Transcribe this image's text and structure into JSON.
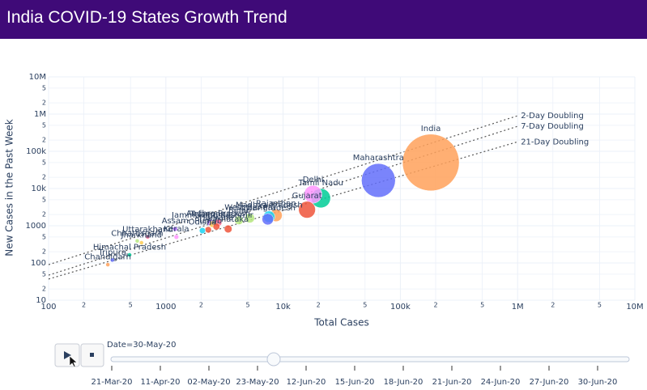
{
  "chart_data": {
    "type": "scatter",
    "title": "India COVID-19 States Growth Trend",
    "xlabel": "Total Cases",
    "ylabel": "New Cases in the Past Week",
    "log_x": true,
    "log_y": true,
    "grid": true,
    "xlim": [
      100,
      10000000
    ],
    "ylim": [
      10,
      10000000
    ],
    "xticks": [
      100,
      {
        "value": 200,
        "label": "2"
      },
      {
        "value": 500,
        "label": "5"
      },
      1000,
      {
        "value": 2000,
        "label": "2"
      },
      {
        "value": 5000,
        "label": "5"
      },
      {
        "value": 10000,
        "label": "10k"
      },
      {
        "value": 20000,
        "label": "2"
      },
      {
        "value": 50000,
        "label": "5"
      },
      {
        "value": 100000,
        "label": "100k"
      },
      {
        "value": 200000,
        "label": "2"
      },
      {
        "value": 500000,
        "label": "5"
      },
      {
        "value": 1000000,
        "label": "1M"
      },
      {
        "value": 2000000,
        "label": "2"
      },
      {
        "value": 5000000,
        "label": "5"
      },
      {
        "value": 10000000,
        "label": "10M"
      }
    ],
    "yticks": [
      10,
      {
        "value": 20,
        "label": "2"
      },
      {
        "value": 50,
        "label": "5"
      },
      100,
      {
        "value": 200,
        "label": "2"
      },
      {
        "value": 500,
        "label": "5"
      },
      1000,
      {
        "value": 2000,
        "label": "2"
      },
      {
        "value": 5000,
        "label": "5"
      },
      {
        "value": 10000,
        "label": "10k"
      },
      {
        "value": 20000,
        "label": "2"
      },
      {
        "value": 50000,
        "label": "5"
      },
      {
        "value": 100000,
        "label": "100k"
      },
      {
        "value": 200000,
        "label": "2"
      },
      {
        "value": 500000,
        "label": "5"
      },
      {
        "value": 1000000,
        "label": "1M"
      },
      {
        "value": 2000000,
        "label": "2"
      },
      {
        "value": 5000000,
        "label": "5"
      },
      {
        "value": 10000000,
        "label": "10M"
      }
    ],
    "labels": [
      "India",
      "Maharashtra",
      "Tamil Nadu",
      "Delhi",
      "Gujarat",
      "Rajasthan",
      "Madhya Pradesh",
      "Uttar Pradesh",
      "West Bengal",
      "Bihar",
      "Karnataka",
      "Andhra Pradesh",
      "Telangana",
      "Jammu and Kashmir",
      "Haryana",
      "Punjab",
      "Odisha",
      "Assam",
      "Kerala",
      "Uttarakhand",
      "Jharkhand",
      "Chhattisgarh",
      "Himachal Pradesh",
      "Tripura",
      "Chandigarh"
    ],
    "x": [
      182000,
      65000,
      21000,
      18000,
      16000,
      8700,
      7600,
      7400,
      5200,
      4200,
      3400,
      2800,
      2400,
      2500,
      2700,
      2300,
      2050,
      1200,
      1230,
      700,
      620,
      570,
      490,
      350,
      320
    ],
    "values": [
      50000,
      16500,
      5500,
      7000,
      2700,
      1900,
      1750,
      1500,
      1600,
      1400,
      820,
      1200,
      1200,
      1100,
      950,
      780,
      740,
      820,
      500,
      500,
      350,
      390,
      165,
      120,
      90
    ],
    "colors": [
      "#ffa15a",
      "#636efa",
      "#00cc96",
      "#ff97ff",
      "#ef553b",
      "#ffa15a",
      "#19d3f3",
      "#636efa",
      "#b6e880",
      "#b6e880",
      "#ef553b",
      "#ff6692",
      "#ab63fa",
      "#fecb52",
      "#ef553b",
      "#ef553b",
      "#19d3f3",
      "#ab63fa",
      "#ff97ff",
      "#ff6692",
      "#fecb52",
      "#b6e880",
      "#00cc96",
      "#636efa",
      "#ffa15a"
    ],
    "reference_lines": [
      {
        "name": "2-Day Doubling",
        "x": [
          100,
          1000000
        ],
        "y": [
          90,
          900000
        ]
      },
      {
        "name": "7-Day Doubling",
        "x": [
          100,
          1000000
        ],
        "y": [
          47,
          470000
        ]
      },
      {
        "name": "21-Day Doubling",
        "x": [
          100,
          1000000
        ],
        "y": [
          37,
          180000
        ]
      }
    ],
    "slider": {
      "current": "Date=30-May-20",
      "steps": [
        "21-Mar-20",
        "11-Apr-20",
        "02-May-20",
        "23-May-20",
        "12-Jun-20",
        "15-Jun-20",
        "18-Jun-20",
        "21-Jun-20",
        "24-Jun-20",
        "27-Jun-20",
        "30-Jun-20"
      ]
    }
  }
}
